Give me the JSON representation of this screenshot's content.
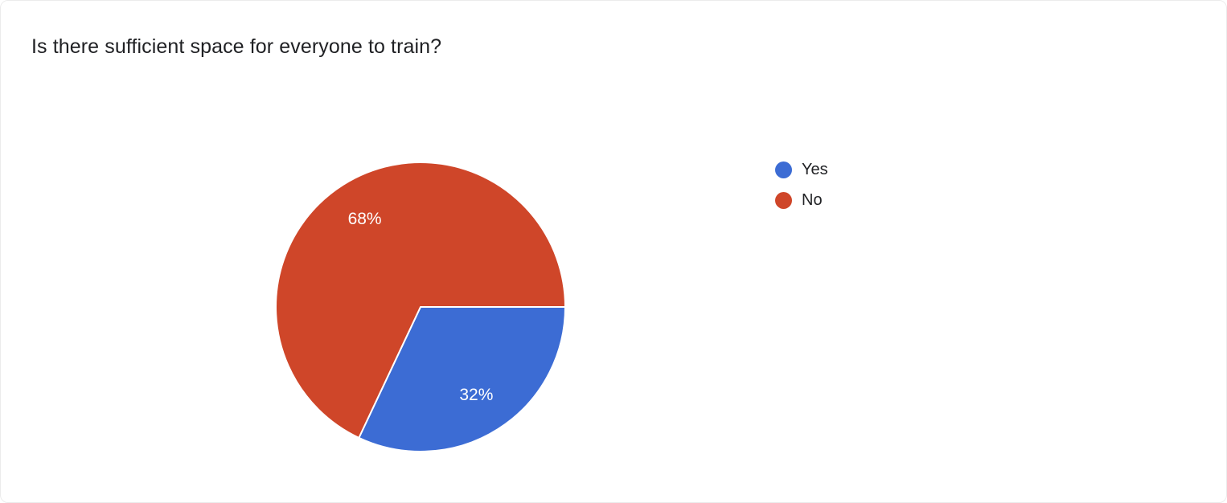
{
  "page": {
    "title": "Is there sufficient space for everyone to train?"
  },
  "chart_data": {
    "type": "pie",
    "title": "Is there sufficient space for everyone to train?",
    "categories": [
      "Yes",
      "No"
    ],
    "values": [
      32,
      68
    ],
    "labels": [
      "32%",
      "68%"
    ],
    "unit": "%",
    "colors": [
      "#3c6cd4",
      "#cf4629"
    ],
    "slice_label_color": "#ffffff",
    "legend_position": "right",
    "start_angle_deg": 0,
    "direction": "clockwise"
  }
}
